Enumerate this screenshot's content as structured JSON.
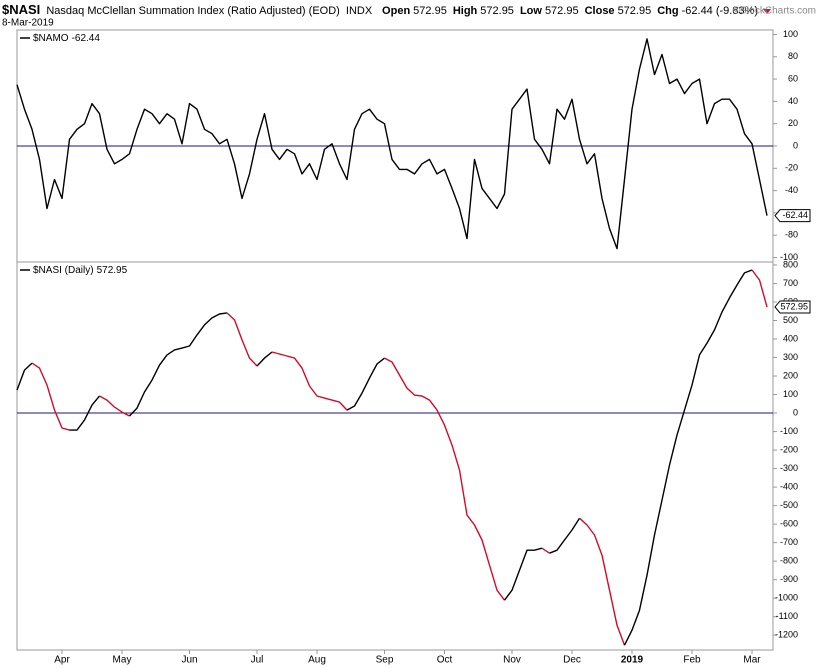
{
  "header": {
    "title": "$NASI",
    "subtitle": "Nasdaq McClellan Summation Index (Ratio Adjusted) (EOD)",
    "exchange": "INDX",
    "date": "8-Mar-2019",
    "watermark": "©StockCharts.com",
    "quote": [
      {
        "label": "Open",
        "value": 572.95
      },
      {
        "label": "High",
        "value": 572.95
      },
      {
        "label": "Low",
        "value": 572.95
      },
      {
        "label": "Close",
        "value": 572.95
      },
      {
        "label": "Chg",
        "value": -62.44
      }
    ],
    "change_pct": "(-9.83%)"
  },
  "chart_data": [
    {
      "type": "line",
      "ylim": [
        -104,
        104
      ],
      "yticks": [
        100,
        80,
        60,
        40,
        20,
        0,
        -20,
        -40,
        -60,
        -80,
        -100
      ],
      "grid": false,
      "hline": 0,
      "hline_color": "#1a1a6e",
      "series": [
        {
          "name": "$NAMO",
          "color": "#000000",
          "values": [
            55,
            33,
            15,
            -12,
            -56,
            -30,
            -47,
            6,
            15,
            20,
            38,
            29,
            -3,
            -16,
            -12,
            -7,
            15,
            33,
            29,
            20,
            29,
            24,
            2,
            38,
            33,
            15,
            11,
            2,
            6,
            -16,
            -47,
            -25,
            6,
            29,
            -3,
            -12,
            -3,
            -7,
            -25,
            -16,
            -30,
            -3,
            2,
            -16,
            -30,
            15,
            29,
            33,
            24,
            20,
            -12,
            -21,
            -21,
            -25,
            -16,
            -12,
            -25,
            -21,
            -38,
            -56,
            -83,
            -12,
            -38,
            -47,
            -56,
            -43,
            33,
            42,
            51,
            6,
            -3,
            -16,
            33,
            24,
            42,
            6,
            -16,
            -7,
            -47,
            -74,
            -92,
            -30,
            33,
            69,
            96,
            64,
            82,
            56,
            60,
            47,
            56,
            60,
            20,
            38,
            42,
            42,
            33,
            11,
            2,
            -30,
            -62.44
          ]
        }
      ]
    },
    {
      "type": "line",
      "ylim": [
        -1280,
        816
      ],
      "yticks": [
        800,
        700,
        600,
        500,
        400,
        300,
        200,
        100,
        0,
        -100,
        -200,
        -300,
        -400,
        -500,
        -600,
        -700,
        -800,
        -900,
        -1000,
        -1100,
        -1200
      ],
      "grid": false,
      "hline": 0,
      "hline_color": "#1a1a6e",
      "categories": [
        null,
        null,
        null,
        null,
        null,
        null,
        "Apr",
        null,
        null,
        null,
        null,
        null,
        null,
        null,
        "May",
        null,
        null,
        null,
        null,
        null,
        null,
        null,
        null,
        "Jun",
        null,
        null,
        null,
        null,
        null,
        null,
        null,
        null,
        "Jul",
        null,
        null,
        null,
        null,
        null,
        null,
        null,
        "Aug",
        null,
        null,
        null,
        null,
        null,
        null,
        null,
        null,
        "Sep",
        null,
        null,
        null,
        null,
        null,
        null,
        null,
        "Oct",
        null,
        null,
        null,
        null,
        null,
        null,
        null,
        null,
        "Nov",
        null,
        null,
        null,
        null,
        null,
        null,
        null,
        "Dec",
        null,
        null,
        null,
        null,
        null,
        null,
        null,
        "2019",
        null,
        null,
        null,
        null,
        null,
        null,
        null,
        "Feb",
        null,
        null,
        null,
        null,
        null,
        null,
        null,
        "Mar",
        null,
        null
      ],
      "series": [
        {
          "name": "$NASI (Daily)",
          "color": "#000000",
          "down_color": "#c8102e",
          "values": [
            124,
            232,
            270,
            243,
            151,
            16,
            -81,
            -92,
            -92,
            -38,
            43,
            92,
            70,
            32,
            5,
            -16,
            27,
            114,
            178,
            259,
            314,
            341,
            351,
            362,
            422,
            476,
            514,
            535,
            541,
            503,
            395,
            297,
            254,
            297,
            330,
            319,
            308,
            297,
            243,
            146,
            92,
            81,
            70,
            59,
            16,
            38,
            108,
            189,
            265,
            297,
            276,
            205,
            135,
            97,
            92,
            70,
            16,
            -65,
            -173,
            -308,
            -551,
            -605,
            -686,
            -822,
            -957,
            -1011,
            -957,
            -849,
            -741,
            -741,
            -730,
            -757,
            -741,
            -686,
            -632,
            -568,
            -605,
            -659,
            -768,
            -957,
            -1146,
            -1254,
            -1173,
            -1065,
            -876,
            -659,
            -470,
            -281,
            -119,
            16,
            151,
            314,
            378,
            449,
            546,
            622,
            692,
            757,
            773,
            719,
            572.95
          ]
        }
      ]
    }
  ]
}
